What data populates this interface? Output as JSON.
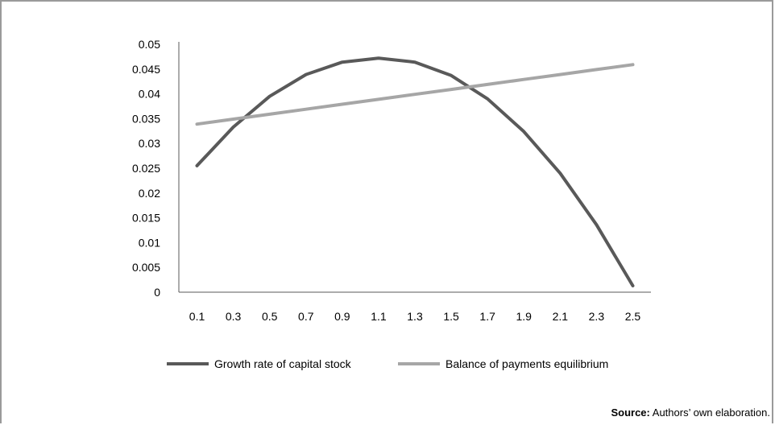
{
  "chart_data": {
    "type": "line",
    "title": "",
    "xlabel": "",
    "ylabel": "",
    "categories": [
      "0.1",
      "0.3",
      "0.5",
      "0.7",
      "0.9",
      "1.1",
      "1.3",
      "1.5",
      "1.7",
      "1.9",
      "2.1",
      "2.3",
      "2.5"
    ],
    "y_ticks": [
      "0",
      "0.005",
      "0.01",
      "0.015",
      "0.02",
      "0.025",
      "0.03",
      "0.035",
      "0.04",
      "0.045",
      "0.05"
    ],
    "ylim": [
      0,
      0.05
    ],
    "grid": false,
    "legend_position": "bottom",
    "series": [
      {
        "name": "Growth rate of capital stock",
        "color": "#595959",
        "values": [
          0.0255,
          0.0333,
          0.0395,
          0.0439,
          0.0464,
          0.0472,
          0.0464,
          0.0437,
          0.039,
          0.0324,
          0.024,
          0.0136,
          0.0013
        ]
      },
      {
        "name": "Balance of payments equilibrium",
        "color": "#a6a6a6",
        "values": [
          0.0339,
          0.0349,
          0.0359,
          0.0369,
          0.0379,
          0.0389,
          0.0399,
          0.0409,
          0.0419,
          0.0429,
          0.0439,
          0.0449,
          0.0459
        ]
      }
    ]
  },
  "source": {
    "prefix": "Source:",
    "text": " Authors’ own elaboration."
  }
}
